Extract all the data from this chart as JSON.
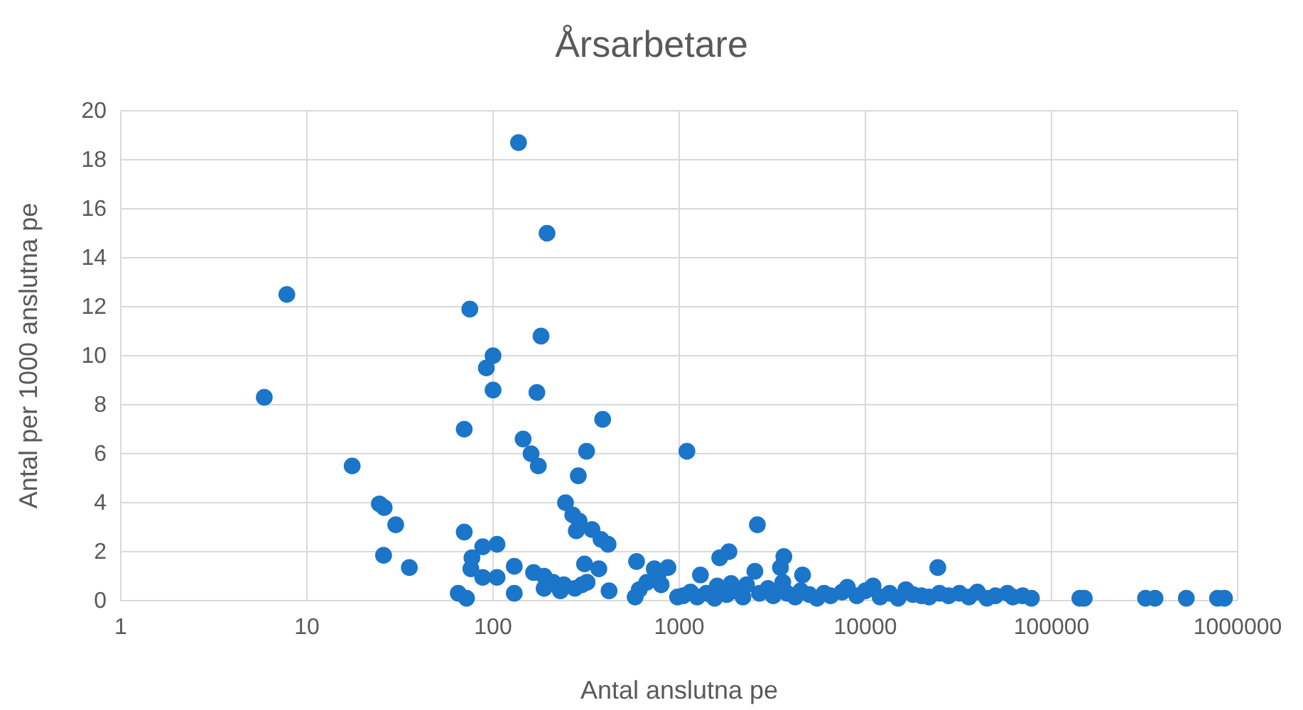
{
  "chart_data": {
    "type": "scatter",
    "title": "Årsarbetare",
    "xlabel": "Antal anslutna pe",
    "ylabel": "Antal per 1000 anslutna pe",
    "log": "x",
    "grid": true,
    "marker": "circle",
    "xlim": [
      1,
      1000000
    ],
    "xticks": [
      1,
      10,
      100,
      1000,
      10000,
      100000,
      1000000
    ],
    "ylim": [
      0,
      20
    ],
    "yticks": [
      0,
      2,
      4,
      6,
      8,
      10,
      12,
      14,
      16,
      18,
      20
    ],
    "series": [
      {
        "color": "#1b75c9",
        "x": [
          5.9,
          7.8,
          17.5,
          24.5,
          26,
          25.8,
          30,
          35.5,
          70,
          70,
          75,
          65,
          72,
          77,
          76,
          88,
          88,
          92,
          100,
          100,
          105,
          105,
          130,
          130,
          145,
          160,
          175,
          172,
          181,
          195,
          137,
          388,
          318,
          287,
          245,
          268,
          290,
          280,
          340,
          380,
          415,
          165,
          188,
          210,
          240,
          275,
          300,
          188,
          230,
          320,
          310,
          370,
          420,
          590,
          735,
          870,
          770,
          670,
          610,
          580,
          800,
          1100,
          980,
          1300,
          1650,
          1850,
          2630,
          3650,
          3500,
          4600,
          24500,
          142000,
          150000,
          320000,
          360000,
          530000,
          780000,
          850000,
          1050,
          1150,
          1250,
          1400,
          1550,
          1800,
          2000,
          2200,
          2300,
          2700,
          3000,
          3200,
          3800,
          4200,
          4500,
          5000,
          5500,
          6000,
          6500,
          7500,
          8000,
          9000,
          10000,
          11000,
          12000,
          13500,
          15000,
          16500,
          18000,
          20000,
          22000,
          25000,
          28000,
          32000,
          36000,
          40000,
          45000,
          50000,
          58000,
          62000,
          70000,
          78000,
          1900,
          3600,
          1600,
          2550
        ],
        "values": [
          8.3,
          12.5,
          5.5,
          3.95,
          3.8,
          1.85,
          3.1,
          1.35,
          2.8,
          7.0,
          11.9,
          0.3,
          0.1,
          1.75,
          1.3,
          2.2,
          0.95,
          9.5,
          10,
          8.6,
          2.3,
          0.95,
          1.4,
          0.3,
          6.6,
          6.0,
          5.5,
          8.5,
          10.8,
          15,
          18.7,
          7.4,
          6.1,
          5.1,
          4.0,
          3.5,
          3.25,
          2.85,
          2.9,
          2.5,
          2.3,
          1.15,
          1.0,
          0.75,
          0.65,
          0.5,
          0.65,
          0.5,
          0.4,
          0.75,
          1.5,
          1.3,
          0.4,
          1.6,
          1.3,
          1.35,
          1.05,
          0.75,
          0.45,
          0.15,
          0.65,
          6.1,
          0.15,
          1.05,
          1.75,
          2.0,
          3.1,
          1.8,
          1.35,
          1.05,
          1.35,
          0.1,
          0.1,
          0.1,
          0.1,
          0.1,
          0.1,
          0.1,
          0.2,
          0.35,
          0.15,
          0.3,
          0.1,
          0.25,
          0.4,
          0.15,
          0.65,
          0.3,
          0.5,
          0.2,
          0.3,
          0.15,
          0.4,
          0.25,
          0.1,
          0.3,
          0.2,
          0.35,
          0.55,
          0.2,
          0.4,
          0.6,
          0.15,
          0.3,
          0.1,
          0.45,
          0.25,
          0.2,
          0.15,
          0.3,
          0.2,
          0.3,
          0.15,
          0.35,
          0.1,
          0.2,
          0.3,
          0.15,
          0.2,
          0.1,
          0.7,
          0.75,
          0.6,
          1.2
        ]
      }
    ]
  }
}
